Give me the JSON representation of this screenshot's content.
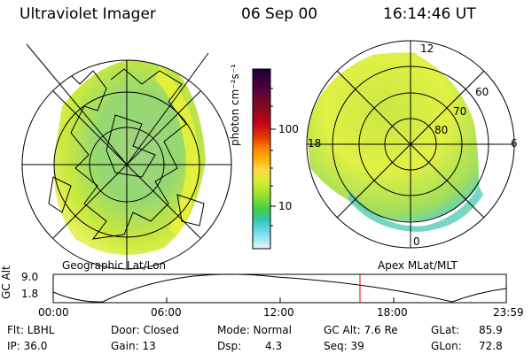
{
  "header": {
    "title": "Ultraviolet Imager",
    "date": "06 Sep 00",
    "time": "16:14:46 UT"
  },
  "colorbar": {
    "label": "photon cm⁻²s⁻¹",
    "ticks": [
      "100",
      "10"
    ],
    "scale": "log",
    "colors": [
      "#1a0033",
      "#4b0040",
      "#8b0a1a",
      "#c4001a",
      "#e23a00",
      "#ff7f00",
      "#ffb000",
      "#ffd84a",
      "#d7ef32",
      "#9be22a",
      "#3fcf46",
      "#30c9b0",
      "#68d8e8",
      "#b4eaf2",
      "#e9f6f8"
    ]
  },
  "left_panel": {
    "caption": "Geographic Lat/Lon"
  },
  "right_panel": {
    "caption": "Apex MLat/MLT",
    "mlt_labels": {
      "top": "12",
      "left": "18",
      "right": "6",
      "bottom": "0"
    },
    "mlat_labels": [
      "60",
      "70",
      "80"
    ]
  },
  "altitude_plot": {
    "ylabel": "GC Alt",
    "yticks": [
      "9.0",
      "1.8"
    ],
    "xticks": [
      "00:00",
      "06:00",
      "12:00",
      "18:00",
      "23:59"
    ],
    "marker_hour": 16.25
  },
  "footer": {
    "flt": "Flt: LBHL",
    "ip": "IP: 36.0",
    "door": "Door: Closed",
    "gain": "Gain: 13",
    "mode": "Mode: Normal",
    "dsp_label": "Dsp:",
    "dsp_value": "4.3",
    "gc_alt": "GC Alt: 7.6 Re",
    "seq": "Seq: 39",
    "glat_label": "GLat:",
    "glat_value": "85.9",
    "glon_label": "GLon:",
    "glon_value": "72.8"
  }
}
